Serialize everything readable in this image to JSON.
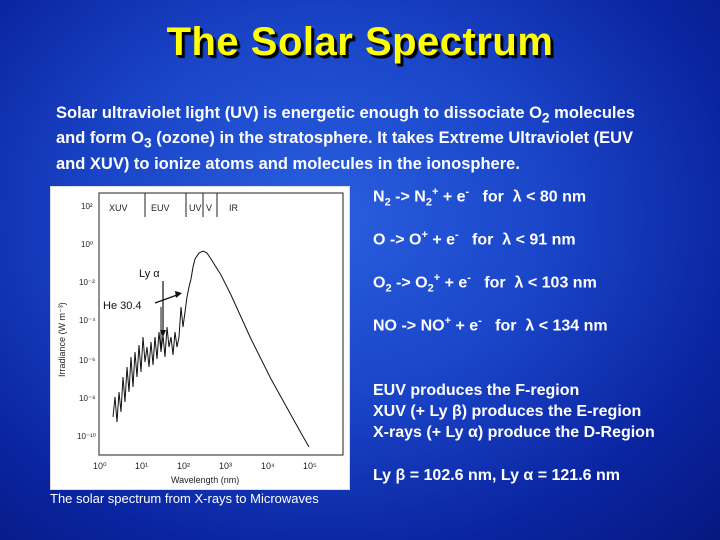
{
  "title": "The Solar Spectrum",
  "intro": {
    "line1": "Solar ultraviolet light (UV) is energetic enough to dissociate O",
    "line1_sub": "2",
    "line1_end": " molecules",
    "line2": "and form O",
    "line2_sub": "3",
    "line2_end": " (ozone) in the stratosphere. It takes Extreme Ultraviolet (EUV",
    "line3": "and XUV) to ionize atoms and molecules in the ionosphere."
  },
  "reactions": [
    {
      "lhs": "N",
      "lhs_sub": "2",
      "arrow": " -> N",
      "rhs_sub": "2",
      "rhs_sup": "+",
      "plus_e": " + e",
      "e_sup": "-",
      "cond": "   for  λ < 80 nm"
    },
    {
      "lhs": "O",
      "lhs_sub": "",
      "arrow": " -> O",
      "rhs_sub": "",
      "rhs_sup": "+",
      "plus_e": " + e",
      "e_sup": "-",
      "cond": "   for  λ < 91 nm"
    },
    {
      "lhs": "O",
      "lhs_sub": "2",
      "arrow": " -> O",
      "rhs_sub": "2",
      "rhs_sup": "+",
      "plus_e": " + e",
      "e_sup": "-",
      "cond": "   for  λ < 103 nm"
    },
    {
      "lhs": "NO",
      "lhs_sub": "",
      "arrow": " -> NO",
      "rhs_sub": "",
      "rhs_sup": "+",
      "plus_e": " + e",
      "e_sup": "-",
      "cond": "   for  λ < 134 nm"
    }
  ],
  "notes": [
    "EUV produces the F-region",
    "XUV (+ Ly β) produces the E-region",
    "X-rays (+ Ly α) produce the D-Region"
  ],
  "ly_values": "Ly β = 102.6 nm, Ly α = 121.6 nm",
  "caption": "The solar spectrum from X-rays to Microwaves",
  "plot": {
    "bands": [
      "XUV",
      "EUV",
      "UV",
      "V",
      "IR"
    ],
    "ylabel": "Irradiance (W m⁻³)",
    "xlabel": "Wavelength (nm)",
    "yticks": [
      "10²",
      "10⁰",
      "10⁻²",
      "10⁻⁴",
      "10⁻⁶",
      "10⁻⁸",
      "10⁻¹⁰"
    ],
    "xticks": [
      "10⁰",
      "10¹",
      "10²",
      "10³",
      "10⁴",
      "10⁵"
    ],
    "annotation_ly": "Ly α",
    "annotation_he": "He 30.4"
  }
}
